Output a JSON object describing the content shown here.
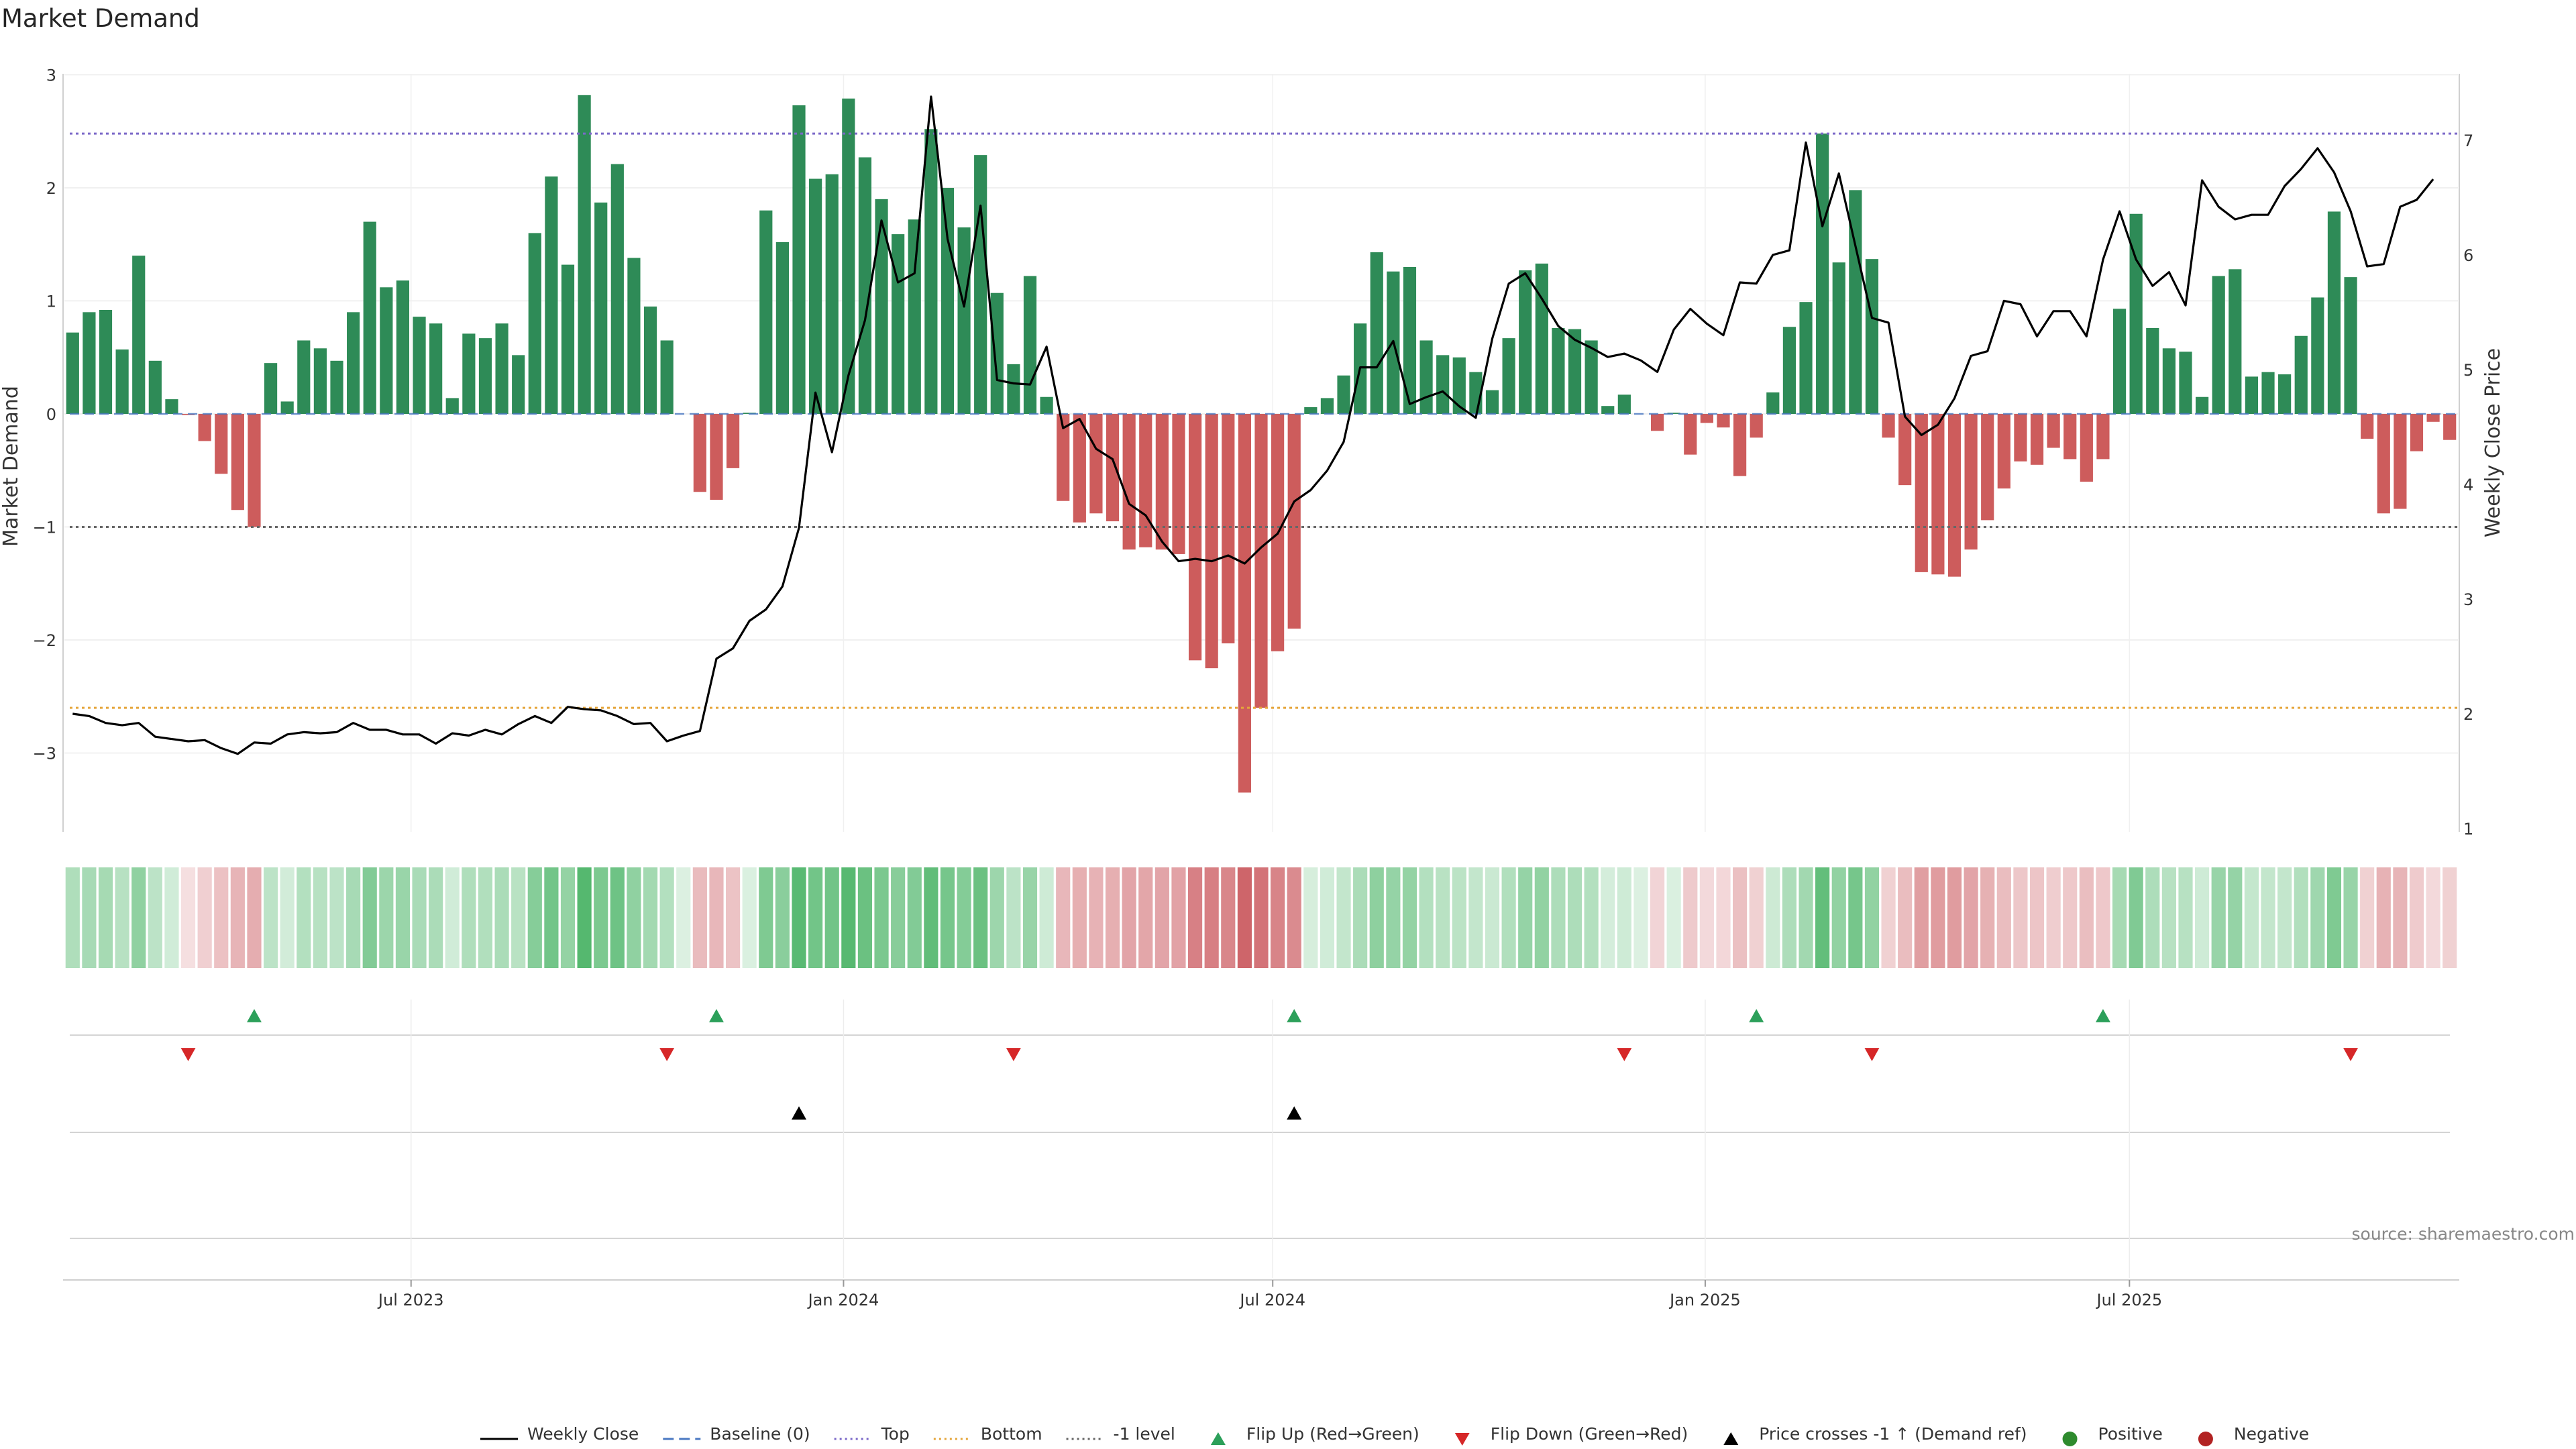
{
  "colors": {
    "green": "#2e8b57",
    "red": "#cd5c5c",
    "price": "#000000",
    "top": "#7b68c8",
    "bottom": "#e5a53a",
    "minus_one": "#666666",
    "baseline": "#4a78c2",
    "flip_up": "#2ca05a",
    "flip_down": "#d62728",
    "cross": "#000000",
    "positive": "#2e8b2e",
    "negative": "#b22222"
  },
  "chart_data": {
    "type": "bar",
    "title": "Market Demand",
    "ylabel": "Market Demand",
    "y2label": "Weekly Close Price",
    "ylim": [
      -3.7,
      3.05
    ],
    "y2lim": [
      1,
      7.6
    ],
    "yticks": [
      "3",
      "2",
      "1",
      "0",
      "−1",
      "−2",
      "−3"
    ],
    "y2ticks": [
      "7",
      "6",
      "5",
      "4",
      "3",
      "2",
      "1"
    ],
    "xticks": [
      "Jul 2023",
      "Jan 2024",
      "Jul 2024",
      "Jan 2025",
      "Jul 2025"
    ],
    "xtick_weeks": [
      20.5,
      46.7,
      72.7,
      98.9,
      124.6
    ],
    "top_level": 2.48,
    "bottom_level": -2.6,
    "minus_one_level": -1,
    "demand": [
      0.72,
      0.9,
      0.92,
      0.57,
      1.4,
      0.47,
      0.13,
      -0.01,
      -0.24,
      -0.53,
      -0.85,
      -1.0,
      0.45,
      0.11,
      0.65,
      0.58,
      0.47,
      0.9,
      1.7,
      1.12,
      1.18,
      0.86,
      0.8,
      0.14,
      0.71,
      0.67,
      0.8,
      0.52,
      1.6,
      2.1,
      1.32,
      2.82,
      1.87,
      2.21,
      1.38,
      0.95,
      0.65,
      0.0,
      -0.69,
      -0.76,
      -0.48,
      0.01,
      1.8,
      1.52,
      2.73,
      2.08,
      2.12,
      2.79,
      2.27,
      1.9,
      1.59,
      1.72,
      2.52,
      2.0,
      1.65,
      2.29,
      1.07,
      0.44,
      1.22,
      0.15,
      -0.77,
      -0.96,
      -0.88,
      -0.95,
      -1.2,
      -1.18,
      -1.2,
      -1.24,
      -2.18,
      -2.25,
      -2.03,
      -3.35,
      -2.6,
      -2.1,
      -1.9,
      0.06,
      0.14,
      0.34,
      0.8,
      1.43,
      1.26,
      1.3,
      0.65,
      0.52,
      0.5,
      0.37,
      0.21,
      0.67,
      1.27,
      1.33,
      0.76,
      0.75,
      0.65,
      0.07,
      0.17,
      0.0,
      -0.15,
      0.01,
      -0.36,
      -0.08,
      -0.12,
      -0.55,
      -0.21,
      0.19,
      0.77,
      0.99,
      2.48,
      1.34,
      1.98,
      1.37,
      -0.21,
      -0.63,
      -1.4,
      -1.42,
      -1.44,
      -1.2,
      -0.94,
      -0.66,
      -0.42,
      -0.45,
      -0.3,
      -0.4,
      -0.6,
      -0.4,
      0.93,
      1.77,
      0.76,
      0.58,
      0.55,
      0.15,
      1.22,
      1.28,
      0.33,
      0.37,
      0.35,
      0.69,
      1.03,
      1.79,
      1.21,
      -0.22,
      -0.88,
      -0.84,
      -0.33,
      -0.07,
      -0.23
    ],
    "price": [
      2.0,
      1.98,
      1.92,
      1.9,
      1.92,
      1.8,
      1.78,
      1.76,
      1.77,
      1.7,
      1.65,
      1.75,
      1.74,
      1.82,
      1.84,
      1.83,
      1.84,
      1.92,
      1.86,
      1.86,
      1.82,
      1.82,
      1.74,
      1.83,
      1.81,
      1.86,
      1.82,
      1.91,
      1.98,
      1.92,
      2.06,
      2.04,
      2.03,
      1.98,
      1.91,
      1.92,
      1.76,
      1.81,
      1.85,
      2.48,
      2.57,
      2.81,
      2.91,
      3.11,
      3.62,
      4.8,
      4.28,
      4.95,
      5.43,
      6.3,
      5.76,
      5.84,
      7.38,
      6.14,
      5.55,
      6.43,
      4.91,
      4.88,
      4.87,
      5.2,
      4.49,
      4.57,
      4.31,
      4.22,
      3.83,
      3.73,
      3.5,
      3.33,
      3.35,
      3.33,
      3.38,
      3.31,
      3.45,
      3.57,
      3.85,
      3.95,
      4.12,
      4.37,
      5.02,
      5.02,
      5.25,
      4.7,
      4.76,
      4.81,
      4.68,
      4.58,
      5.27,
      5.75,
      5.84,
      5.62,
      5.38,
      5.26,
      5.19,
      5.11,
      5.14,
      5.08,
      4.98,
      5.35,
      5.53,
      5.4,
      5.3,
      5.76,
      5.75,
      6.0,
      6.04,
      6.98,
      6.25,
      6.71,
      6.08,
      5.45,
      5.41,
      4.59,
      4.43,
      4.52,
      4.75,
      5.12,
      5.16,
      5.6,
      5.57,
      5.29,
      5.51,
      5.51,
      5.29,
      5.96,
      6.38,
      5.96,
      5.73,
      5.85,
      5.56,
      6.65,
      6.42,
      6.31,
      6.35,
      6.35,
      6.6,
      6.75,
      6.93,
      6.72,
      6.38,
      5.9,
      5.92,
      6.42,
      6.48,
      6.66
    ],
    "flip_up_weeks": [
      11,
      39,
      74,
      102,
      123
    ],
    "flip_down_weeks": [
      7,
      36,
      57,
      94,
      109,
      138
    ],
    "price_cross_weeks": [
      44,
      74
    ],
    "legend": [
      {
        "label": "Weekly Close",
        "kind": "line",
        "color": "#000000"
      },
      {
        "label": "Baseline (0)",
        "kind": "dash",
        "color": "#4a78c2"
      },
      {
        "label": "Top",
        "kind": "dot",
        "color": "#7b68c8"
      },
      {
        "label": "Bottom",
        "kind": "dot",
        "color": "#e5a53a"
      },
      {
        "label": "-1 level",
        "kind": "dot",
        "color": "#666666"
      },
      {
        "label": "Flip Up (Red→Green)",
        "kind": "tri-up",
        "color": "#2ca05a"
      },
      {
        "label": "Flip Down (Green→Red)",
        "kind": "tri-down",
        "color": "#d62728"
      },
      {
        "label": "Price crosses -1 ↑ (Demand ref)",
        "kind": "tri-up",
        "color": "#000000"
      },
      {
        "label": "Positive",
        "kind": "circle",
        "color": "#2e8b2e"
      },
      {
        "label": "Negative",
        "kind": "circle",
        "color": "#b22222"
      }
    ],
    "source": "source: sharemaestro.com"
  }
}
